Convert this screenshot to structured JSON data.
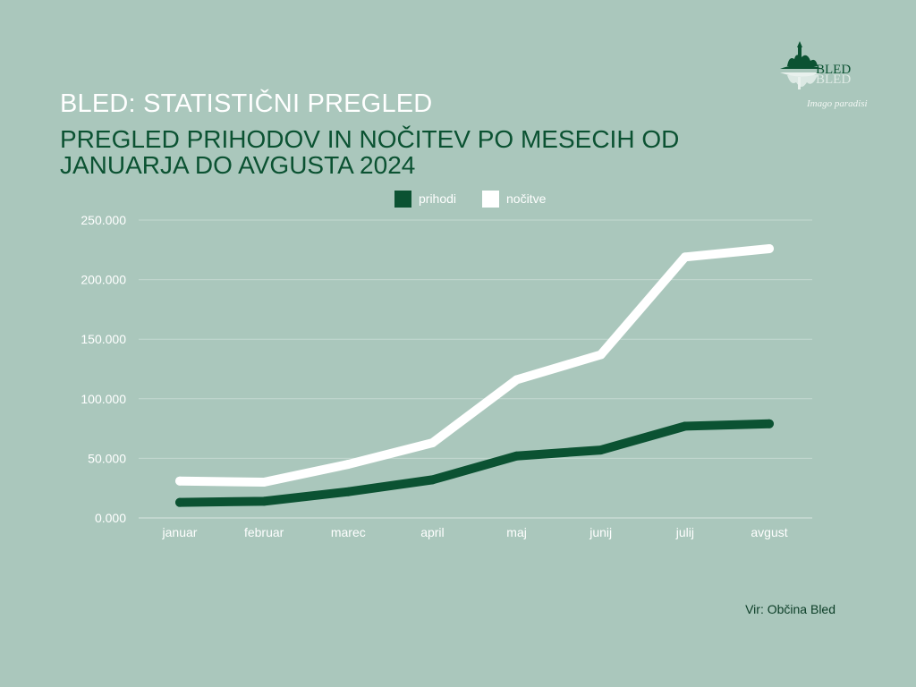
{
  "header": {
    "subtitle": "BLED: STATISTIČNI PREGLED",
    "title": "PREGLED PRIHODOV IN NOČITEV PO MESECIH OD JANUARJA DO AVGUSTA 2024"
  },
  "logo": {
    "name": "BLED",
    "tagline": "Imago paradisi"
  },
  "source": "Vir: Občina Bled",
  "colors": {
    "background": "#aac7bc",
    "prihodi": "#0b5232",
    "nocitve": "#ffffff",
    "grid": "#c4d9d1"
  },
  "chart_data": {
    "type": "line",
    "categories": [
      "januar",
      "februar",
      "marec",
      "april",
      "maj",
      "junij",
      "julij",
      "avgust"
    ],
    "series": [
      {
        "name": "prihodi",
        "color": "#0b5232",
        "values": [
          13000,
          14000,
          22000,
          32000,
          52000,
          57000,
          77000,
          79000
        ]
      },
      {
        "name": "nočitve",
        "color": "#ffffff",
        "values": [
          31000,
          30000,
          45000,
          63000,
          116000,
          137000,
          219000,
          226000
        ]
      }
    ],
    "ylim": [
      0,
      250000
    ],
    "yticks": [
      0,
      50000,
      100000,
      150000,
      200000,
      250000
    ],
    "ytick_labels": [
      "0.000",
      "50.000",
      "100.000",
      "150.000",
      "200.000",
      "250.000"
    ],
    "grid": true,
    "legend_position": "top-center",
    "xlabel": "",
    "ylabel": ""
  }
}
